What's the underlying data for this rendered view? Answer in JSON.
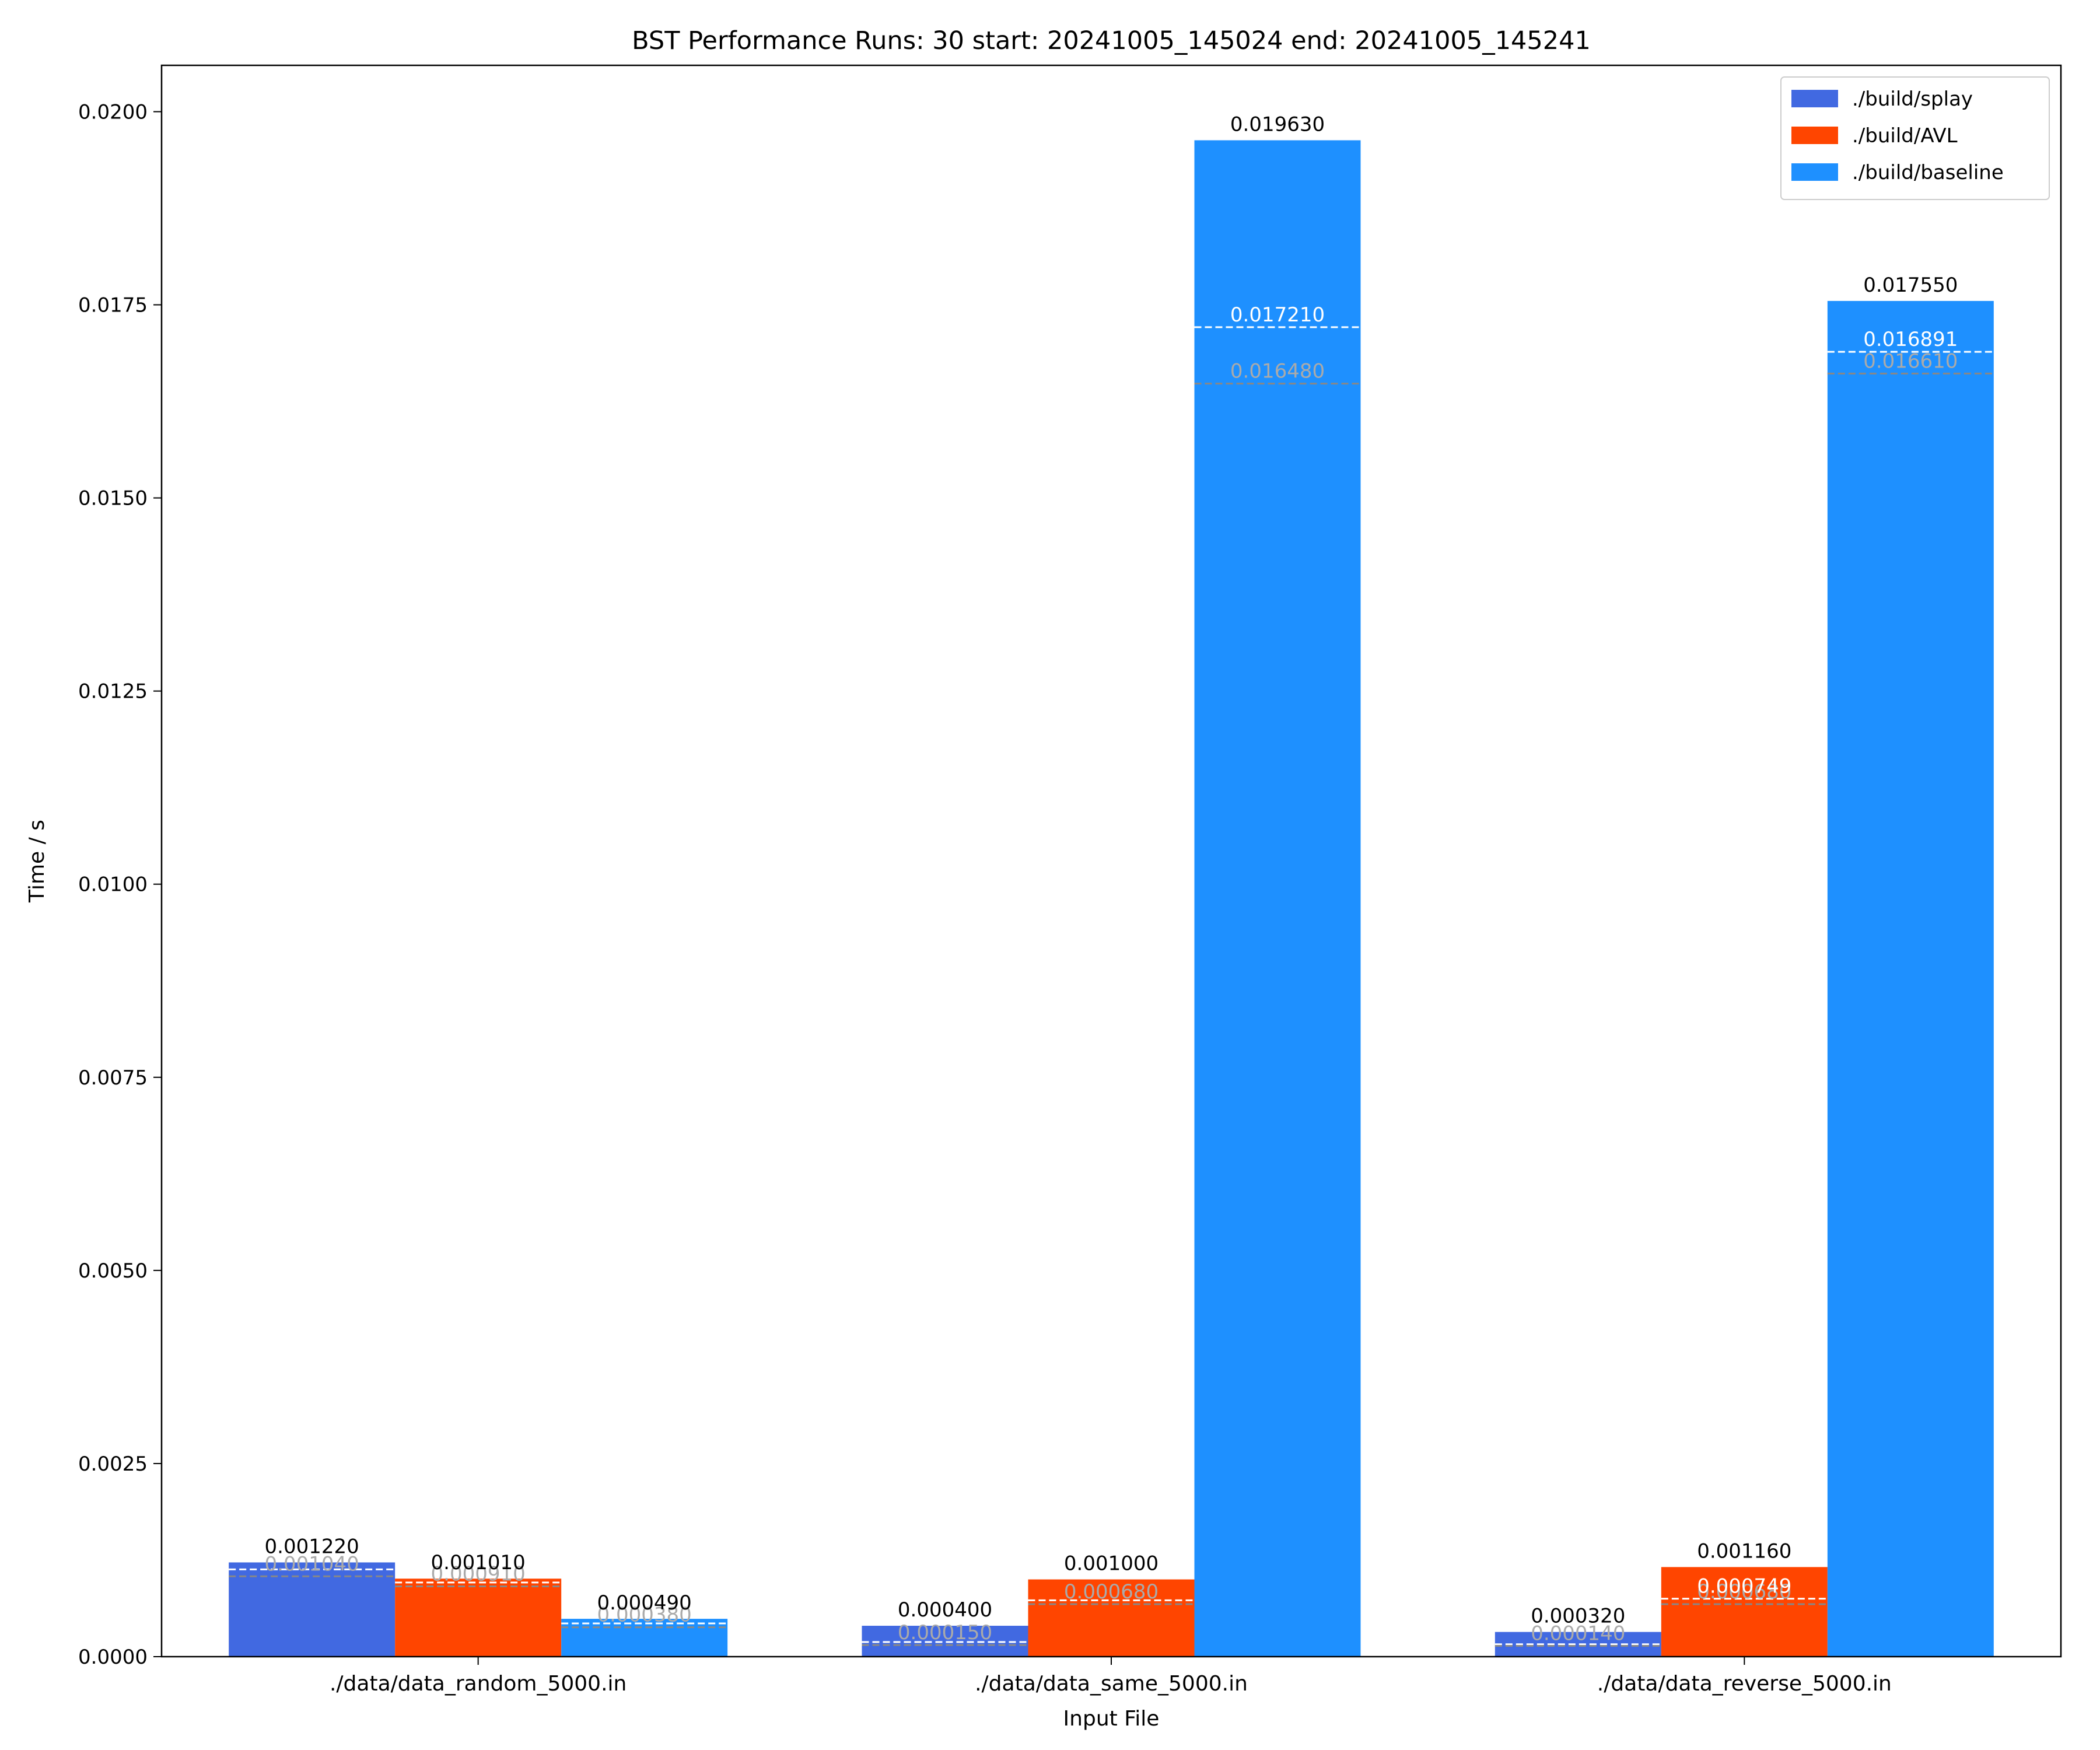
{
  "chart_data": {
    "type": "bar",
    "title": "BST Performance Runs: 30 start: 20241005_145024 end: 20241005_145241",
    "xlabel": "Input File",
    "ylabel": "Time / s",
    "ylim": [
      0,
      0.0206
    ],
    "yticks": [
      "0.0000",
      "0.0025",
      "0.0050",
      "0.0075",
      "0.0100",
      "0.0125",
      "0.0150",
      "0.0175",
      "0.0200"
    ],
    "categories": [
      "./data/data_random_5000.in",
      "./data/data_same_5000.in",
      "./data/data_reverse_5000.in"
    ],
    "legend_position": "top-right",
    "series": [
      {
        "name": "./build/splay",
        "color": "#4169e1",
        "max": [
          0.00122,
          0.0004,
          0.00032
        ],
        "max_labels": [
          "0.001220",
          "0.000400",
          "0.000320"
        ],
        "mean": [
          0.00113,
          0.00019,
          0.00016
        ],
        "median": [
          0.00104,
          0.00015,
          0.00014
        ],
        "median_labels": [
          "0.001040",
          "0.000150",
          "0.000140"
        ]
      },
      {
        "name": "./build/AVL",
        "color": "#ff4500",
        "max": [
          0.00101,
          0.001,
          0.00116
        ],
        "max_labels": [
          "0.001010",
          "0.001000",
          "0.001160"
        ],
        "mean": [
          0.00096,
          0.00073,
          0.00075
        ],
        "mean_labels": [
          "",
          "",
          "0.000749"
        ],
        "median": [
          0.00091,
          0.00068,
          0.00068
        ],
        "median_labels": [
          "0.000910",
          "0.000680",
          "0.000680"
        ]
      },
      {
        "name": "./build/baseline",
        "color": "#1e90ff",
        "max": [
          0.00049,
          0.01963,
          0.01755
        ],
        "max_labels": [
          "0.000490",
          "0.019630",
          "0.017550"
        ],
        "mean": [
          0.00043,
          0.01721,
          0.016891
        ],
        "mean_labels": [
          "",
          "0.017210",
          "0.016891"
        ],
        "median": [
          0.00038,
          0.01648,
          0.01661
        ],
        "median_labels": [
          "0.000380",
          "0.016480",
          "0.016610"
        ]
      }
    ]
  }
}
